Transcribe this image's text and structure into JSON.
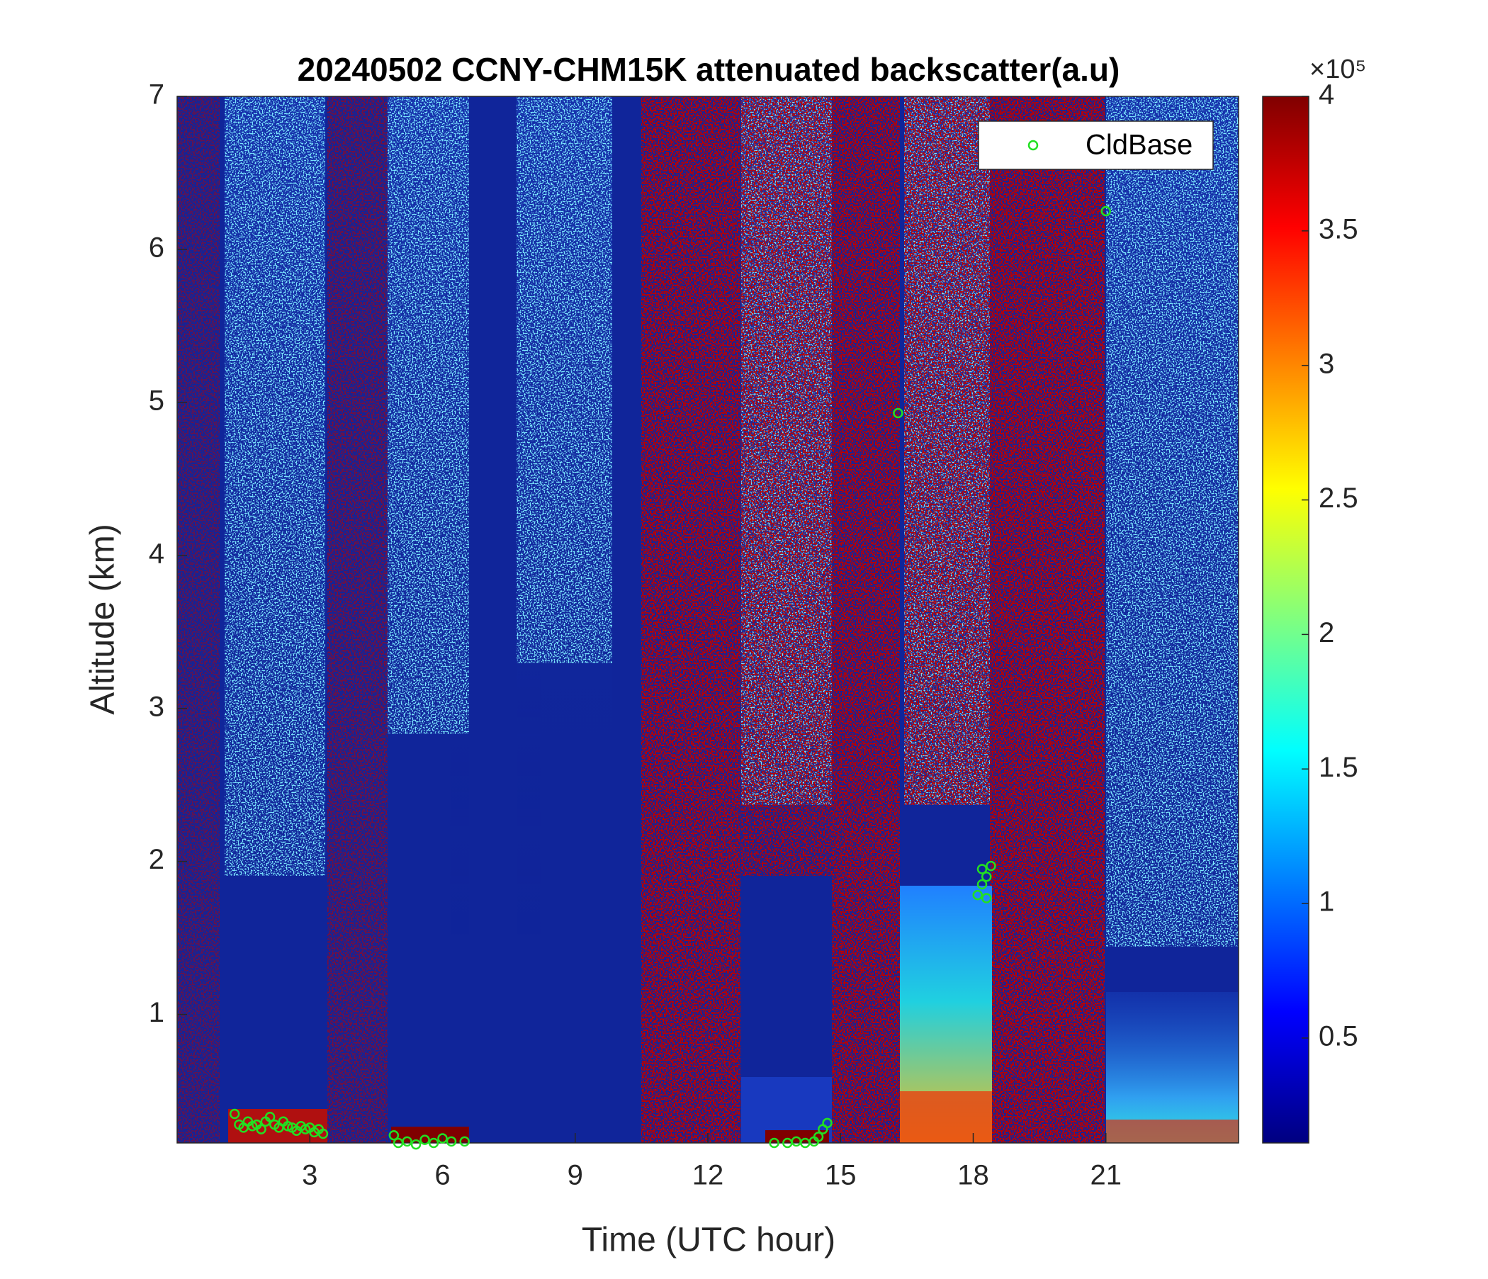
{
  "chart_data": {
    "type": "heatmap-scatter",
    "title": "20240502 CCNY-CHM15K attenuated backscatter(a.u)",
    "x_label": "Time (UTC hour)",
    "y_label": "Altitude (km)",
    "xlim": [
      0,
      24
    ],
    "xticks": [
      3,
      6,
      9,
      12,
      15,
      18,
      21
    ],
    "ylim": [
      0.16,
      7
    ],
    "yticks": [
      1,
      2,
      3,
      4,
      5,
      6,
      7
    ],
    "colorbar": {
      "lim": [
        0.11,
        4
      ],
      "ticks": [
        0.5,
        1,
        1.5,
        2,
        2.5,
        3,
        3.5,
        4
      ],
      "multiplier": "×10⁵",
      "colormap": "jet"
    },
    "legend": "northeast",
    "series": [
      {
        "name": "CldBase",
        "color": "#22e022",
        "x": [
          1.3,
          1.4,
          1.5,
          1.6,
          1.7,
          1.8,
          1.9,
          2.0,
          2.1,
          2.2,
          2.3,
          2.4,
          2.5,
          2.6,
          2.7,
          2.8,
          2.9,
          3.0,
          3.1,
          3.2,
          3.3,
          4.9,
          5.0,
          5.2,
          5.4,
          5.6,
          5.8,
          6.0,
          6.2,
          6.5,
          13.5,
          13.8,
          14.0,
          14.2,
          14.4,
          14.5,
          14.6,
          14.7,
          16.3,
          18.1,
          18.2,
          18.2,
          18.3,
          18.3,
          18.4,
          21.0
        ],
        "values": [
          0.35,
          0.28,
          0.26,
          0.3,
          0.27,
          0.28,
          0.25,
          0.3,
          0.33,
          0.28,
          0.26,
          0.3,
          0.27,
          0.26,
          0.24,
          0.27,
          0.25,
          0.26,
          0.23,
          0.25,
          0.22,
          0.21,
          0.16,
          0.17,
          0.15,
          0.18,
          0.16,
          0.19,
          0.17,
          0.17,
          0.16,
          0.16,
          0.17,
          0.16,
          0.17,
          0.2,
          0.25,
          0.29,
          4.93,
          1.78,
          1.85,
          1.95,
          1.76,
          1.9,
          1.97,
          6.25
        ]
      }
    ]
  }
}
